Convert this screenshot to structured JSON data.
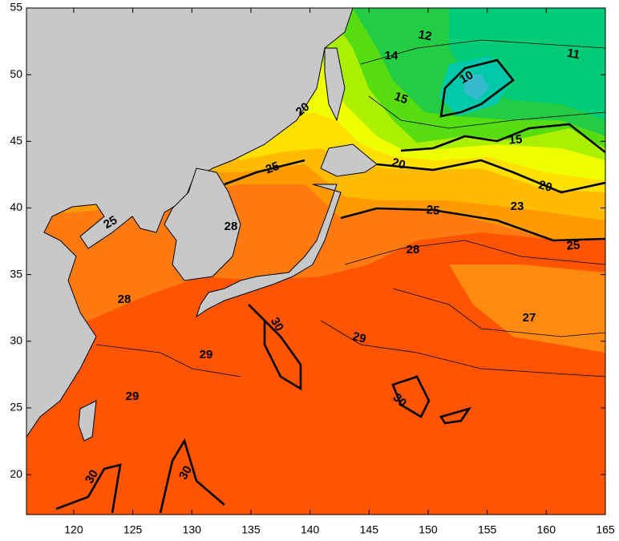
{
  "chart_data": {
    "type": "contour",
    "xlim": [
      116,
      165
    ],
    "ylim": [
      17,
      55
    ],
    "xticks": [
      120,
      125,
      130,
      135,
      140,
      145,
      150,
      155,
      160,
      165
    ],
    "yticks": [
      20,
      25,
      30,
      35,
      40,
      45,
      50,
      55
    ],
    "contour_labels": [
      12,
      14,
      11,
      10,
      15,
      15,
      20,
      20,
      20,
      25,
      25,
      25,
      23,
      28,
      28,
      28,
      27,
      29,
      29,
      29,
      30,
      30,
      30,
      30,
      25
    ]
  }
}
